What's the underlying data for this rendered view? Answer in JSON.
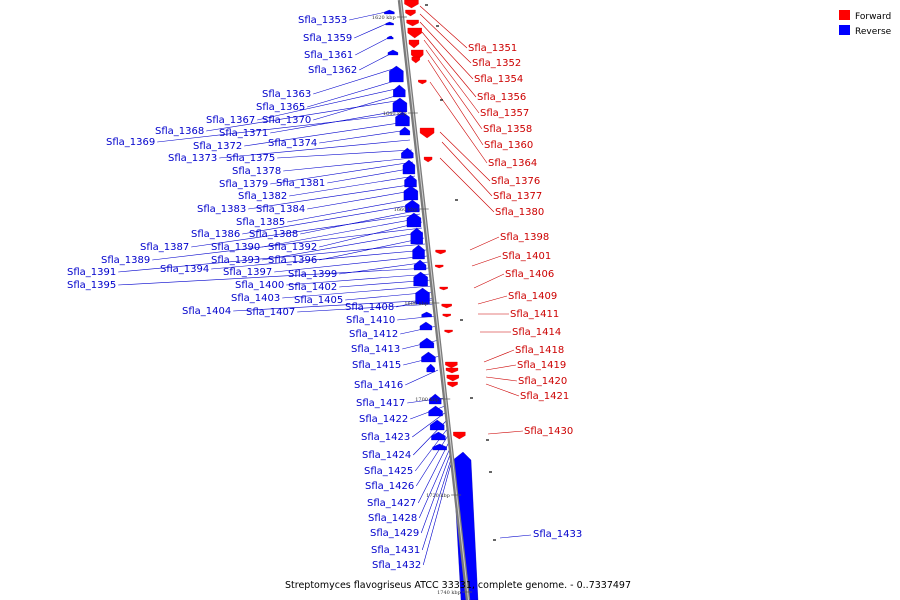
{
  "caption": "Streptomyces flavogriseus ATCC 33331, complete genome. - 0..7337497",
  "legend": [
    {
      "label": "Forward",
      "color": "#ff0000"
    },
    {
      "label": "Reverse",
      "color": "#0000ff"
    }
  ],
  "ticks": [
    "1620 kbp",
    "1640 kbp",
    "1660 kbp",
    "1680 kbp",
    "1700 kbp",
    "1720 kbp",
    "1740 kbp"
  ],
  "reverse_genes": [
    "Sfla_1353",
    "Sfla_1359",
    "Sfla_1361",
    "Sfla_1362",
    "Sfla_1363",
    "Sfla_1365",
    "Sfla_1367",
    "Sfla_1370",
    "Sfla_1368",
    "Sfla_1371",
    "Sfla_1369",
    "Sfla_1372",
    "Sfla_1374",
    "Sfla_1373",
    "Sfla_1375",
    "Sfla_1378",
    "Sfla_1379",
    "Sfla_1381",
    "Sfla_1382",
    "Sfla_1383",
    "Sfla_1384",
    "Sfla_1385",
    "Sfla_1386",
    "Sfla_1388",
    "Sfla_1387",
    "Sfla_1390",
    "Sfla_1392",
    "Sfla_1389",
    "Sfla_1393",
    "Sfla_1396",
    "Sfla_1391",
    "Sfla_1394",
    "Sfla_1397",
    "Sfla_1399",
    "Sfla_1395",
    "Sfla_1400",
    "Sfla_1402",
    "Sfla_1403",
    "Sfla_1405",
    "Sfla_1408",
    "Sfla_1404",
    "Sfla_1407",
    "Sfla_1410",
    "Sfla_1412",
    "Sfla_1413",
    "Sfla_1415",
    "Sfla_1416",
    "Sfla_1417",
    "Sfla_1422",
    "Sfla_1423",
    "Sfla_1424",
    "Sfla_1425",
    "Sfla_1426",
    "Sfla_1427",
    "Sfla_1428",
    "Sfla_1429",
    "Sfla_1431",
    "Sfla_1432"
  ],
  "forward_genes": [
    "Sfla_1351",
    "Sfla_1352",
    "Sfla_1354",
    "Sfla_1356",
    "Sfla_1357",
    "Sfla_1358",
    "Sfla_1360",
    "Sfla_1364",
    "Sfla_1376",
    "Sfla_1377",
    "Sfla_1380",
    "Sfla_1398",
    "Sfla_1401",
    "Sfla_1406",
    "Sfla_1409",
    "Sfla_1411",
    "Sfla_1414",
    "Sfla_1418",
    "Sfla_1419",
    "Sfla_1420",
    "Sfla_1421",
    "Sfla_1430"
  ],
  "other_genes": [
    "Sfla_1433"
  ]
}
